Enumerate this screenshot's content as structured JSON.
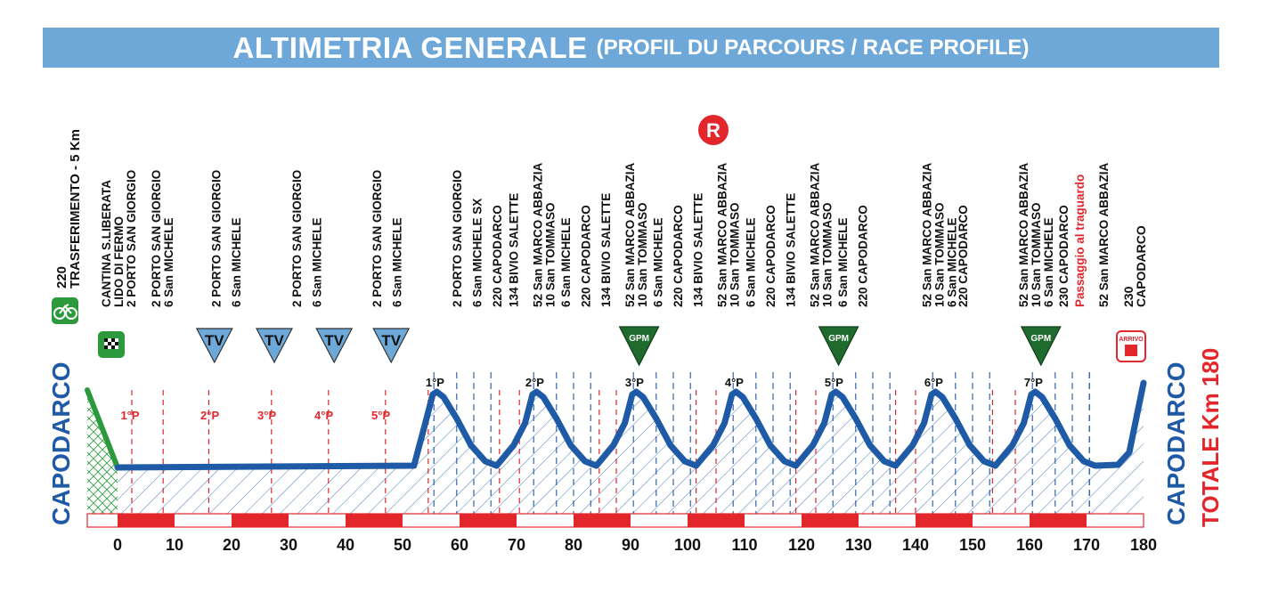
{
  "banner": {
    "title_main": "ALTIMETRIA GENERALE",
    "title_sub": "(PROFIL DU PARCOURS / RACE PROFILE)"
  },
  "start_label": "CAPODARCO",
  "finish_label": "CAPODARCO",
  "total_label": "TOTALE  Km 180",
  "transfer": {
    "alt": "220",
    "text": "TRASFERIMENTO  -  5 Km"
  },
  "start_labels": [
    "CANTINA S.LIBERATA",
    "LIDO DI FERMO",
    "2  PORTO SAN GIORGIO"
  ],
  "waypoints": [
    {
      "km": 9.5,
      "lines": [
        "2  PORTO SAN GIORGIO",
        "6  San MICHELE"
      ]
    },
    {
      "km": 17,
      "lines": [
        "2  PORTO SAN GIORGIO"
      ]
    },
    {
      "km": 19.5,
      "lines": [
        "6  San MICHELE"
      ]
    },
    {
      "km": 27,
      "lines": [
        "2  PORTO SAN GIORGIO"
      ]
    },
    {
      "km": 29.5,
      "lines": [
        "6  San MICHELE"
      ]
    },
    {
      "km": 37,
      "lines": [
        "2  PORTO SAN GIORGIO"
      ]
    },
    {
      "km": 39.5,
      "lines": [
        "6  San MICHELE"
      ]
    },
    {
      "km": 47,
      "lines": [
        "2  PORTO SAN GIORGIO"
      ]
    },
    {
      "km": 49.5,
      "lines": [
        "6  San MICHELE SX"
      ]
    },
    {
      "km": 52,
      "lines": [
        "220  CAPODARCO"
      ],
      "bold": true
    },
    {
      "km": 54,
      "lines": [
        "134 BIVIO SALETTE"
      ]
    },
    {
      "km": 57,
      "lines": [
        "52  San MARCO ABBAZIA",
        "10  San TOMMASO"
      ]
    },
    {
      "km": 60.5,
      "lines": [
        "6  San MICHELE"
      ]
    },
    {
      "km": 63,
      "lines": [
        "220  CAPODARCO"
      ],
      "bold": true
    },
    {
      "km": 65.5,
      "lines": [
        "134 BIVIO SALETTE"
      ]
    },
    {
      "km": 68.5,
      "lines": [
        "52  San MARCO ABBAZIA",
        "10  San TOMMASO"
      ]
    },
    {
      "km": 72,
      "lines": [
        "6  San MICHELE"
      ]
    },
    {
      "km": 74.5,
      "lines": [
        "220  CAPODARCO"
      ],
      "bold": true
    },
    {
      "km": 77,
      "lines": [
        "134 BIVIO SALETTE"
      ]
    },
    {
      "km": 80,
      "lines": [
        "52  San MARCO ABBAZIA",
        "10  San TOMMASO"
      ]
    },
    {
      "km": 83.5,
      "lines": [
        "6  San MICHELE"
      ]
    },
    {
      "km": 86,
      "lines": [
        "220  CAPODARCO"
      ],
      "bold": true
    },
    {
      "km": 88.5,
      "lines": [
        "134 BIVIO SALETTE"
      ]
    },
    {
      "km": 91.5,
      "lines": [
        "52  San MARCO ABBAZIA",
        "10  San TOMMASO"
      ]
    },
    {
      "km": 95,
      "lines": [
        "6  San MICHELE"
      ]
    },
    {
      "km": 97.5,
      "lines": [
        "220  CAPODARCO"
      ],
      "bold": true
    },
    {
      "km": 105.5,
      "lines": [
        "52  San MARCO ABBAZIA",
        "10  San TOMMASO",
        "6  San MICHELE"
      ]
    },
    {
      "km": 110,
      "lines": [
        "220  CAPODARCO"
      ],
      "bold": true
    },
    {
      "km": 117.5,
      "lines": [
        "52  San MARCO ABBAZIA",
        "10  San TOMMASO",
        "6  San MICHELE"
      ]
    },
    {
      "km": 122.5,
      "lines": [
        "230  CAPODARCO"
      ],
      "bold": true
    },
    {
      "km": 124.5,
      "lines": [
        "Passaggio al traguardo"
      ],
      "red": true
    },
    {
      "km": 127.5,
      "lines": [
        "52  San MARCO ABBAZIA"
      ]
    }
  ],
  "finish_text": {
    "alt": "230",
    "name": "CAPODARCO"
  },
  "badges": {
    "tv": "TV",
    "gpm": "GPM",
    "r": "R",
    "arrivo": "ARRIVO"
  },
  "km_ticks": [
    "0",
    "10",
    "20",
    "30",
    "40",
    "50",
    "60",
    "70",
    "80",
    "90",
    "100",
    "110",
    "120",
    "130",
    "140",
    "150",
    "160",
    "170",
    "180"
  ],
  "passes_upper": [
    "1°P",
    "2°P",
    "3°P",
    "4°P",
    "5°P",
    "6°P",
    "7°P"
  ],
  "passes_lower": [
    "1°P",
    "2°P",
    "3°P",
    "4°P",
    "5°P"
  ],
  "colors": {
    "banner": "#6ea8d8",
    "profile": "#1f5aa6",
    "transfer": "#2c9a3c",
    "red": "#e3262c",
    "gpm": "#1f6b2e",
    "tv": "#6ea8d8"
  }
}
